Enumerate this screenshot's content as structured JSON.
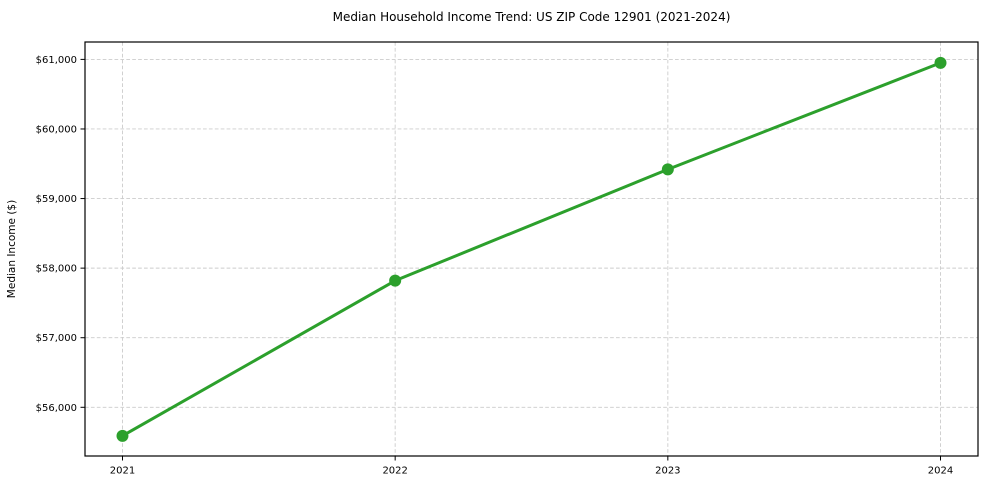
{
  "chart_data": {
    "type": "line",
    "title": "Median Household Income Trend: US ZIP Code 12901 (2021-2024)",
    "xlabel": "",
    "ylabel": "Median Income ($)",
    "x": [
      2021,
      2022,
      2023,
      2024
    ],
    "xtick_labels": [
      "2021",
      "2022",
      "2023",
      "2024"
    ],
    "series": [
      {
        "name": "Median Household Income",
        "values": [
          55590,
          57820,
          59420,
          60950
        ]
      }
    ],
    "yticks": [
      56000,
      57000,
      58000,
      59000,
      60000,
      61000
    ],
    "ytick_labels": [
      "$56,000",
      "$57,000",
      "$58,000",
      "$59,000",
      "$60,000",
      "$61,000"
    ],
    "ylim": [
      55300,
      61250
    ],
    "grid": true,
    "grid_style": "dashed",
    "legend": false,
    "legend_position": "none",
    "line_color": "#2ca02c",
    "marker": "circle",
    "grid_color": "#cccccc",
    "axis_color": "#000000",
    "text_color": "#000000",
    "background_color": "#ffffff"
  }
}
